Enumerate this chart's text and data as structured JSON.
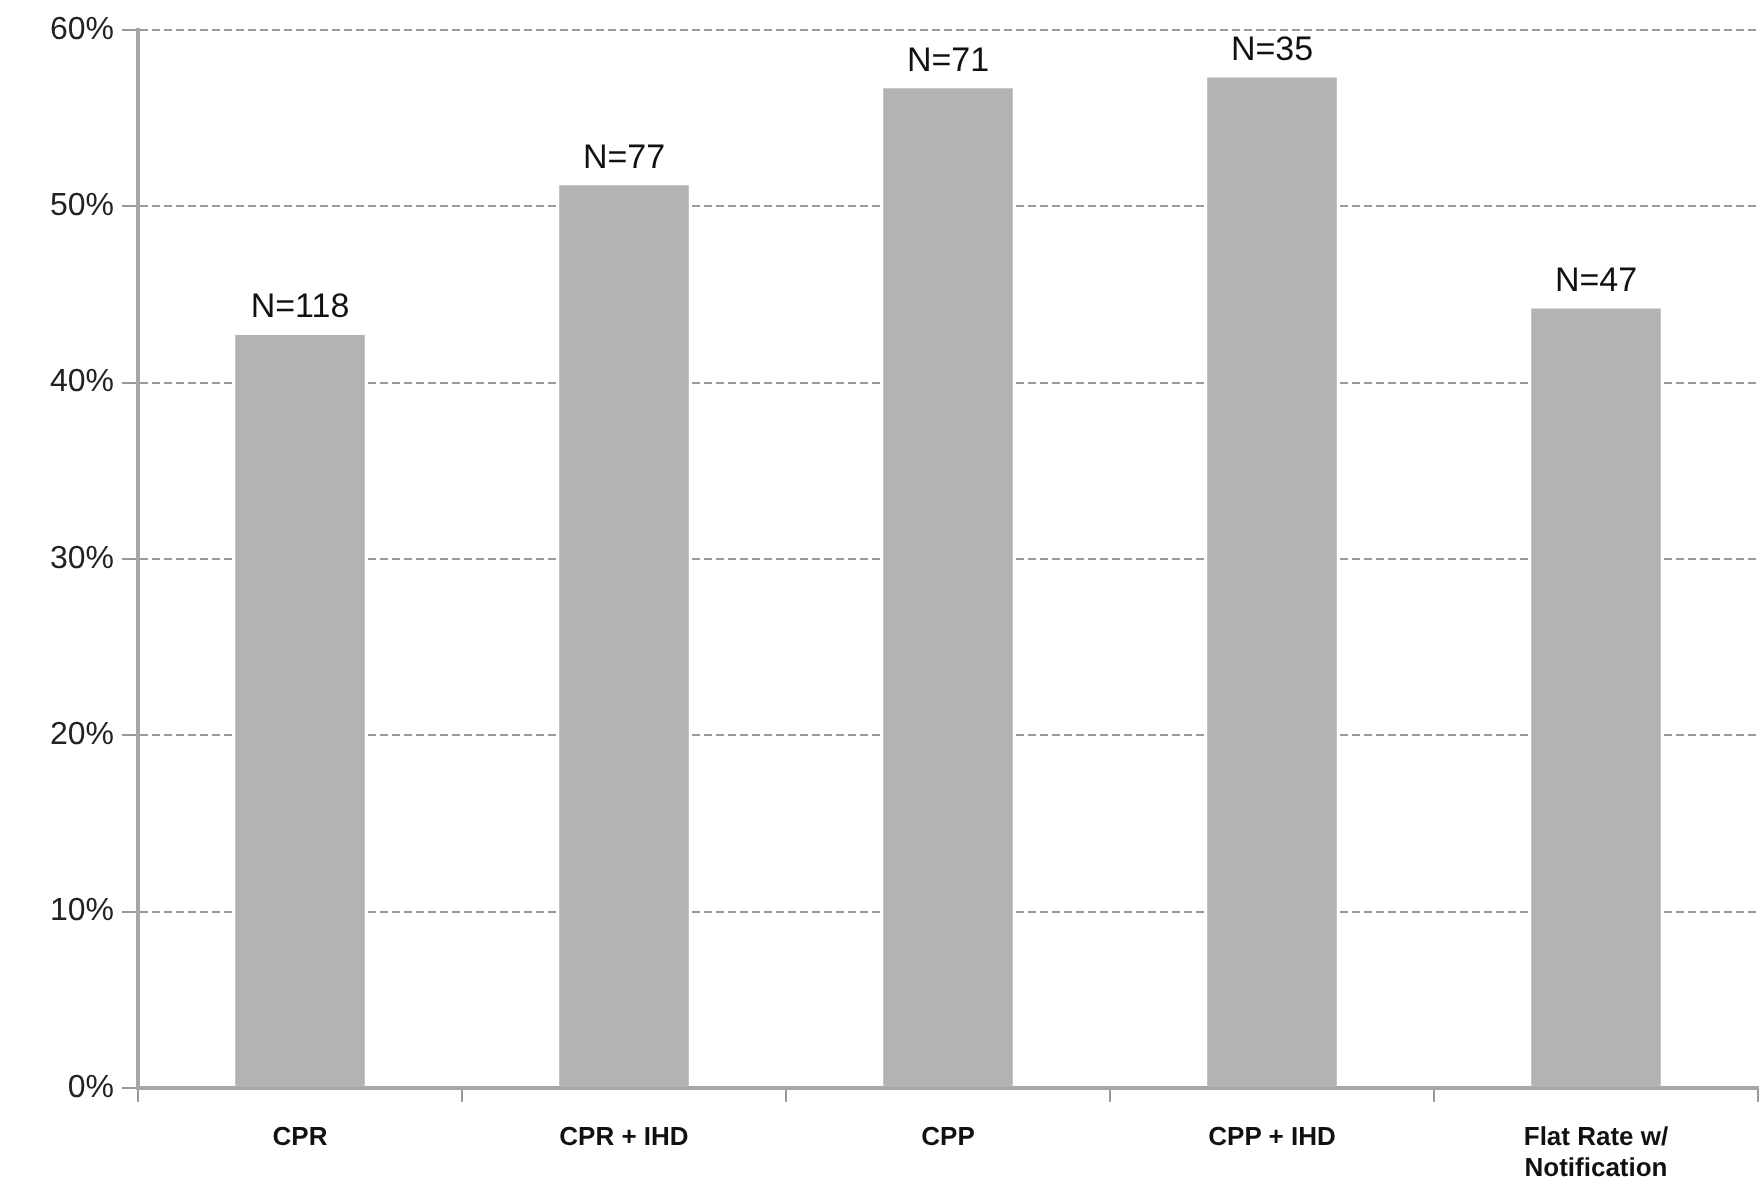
{
  "chart_data": {
    "type": "bar",
    "categories": [
      "CPR",
      "CPR + IHD",
      "CPP",
      "CPP + IHD",
      "Flat Rate w/ Notification"
    ],
    "values": [
      42.7,
      51.2,
      56.7,
      57.3,
      44.2
    ],
    "color": "#b3b3b3",
    "annotations": [
      {
        "text": "N=118",
        "x": "CPR",
        "y": 42.7
      },
      {
        "text": "N=77",
        "x": "CPR + IHD",
        "y": 51.2
      },
      {
        "text": "N=71",
        "x": "CPP",
        "y": 56.7
      },
      {
        "text": "N=35",
        "x": "CPP + IHD",
        "y": 57.3
      },
      {
        "text": "N=47",
        "x": "Flat Rate w/ Notification",
        "y": 44.2
      }
    ],
    "ylim": [
      0,
      60
    ],
    "yticks": [
      {
        "value": 0,
        "label": "0%"
      },
      {
        "value": 10,
        "label": "10%"
      },
      {
        "value": 20,
        "label": "20%"
      },
      {
        "value": 30,
        "label": "30%"
      },
      {
        "value": 40,
        "label": "40%"
      },
      {
        "value": 50,
        "label": "50%"
      },
      {
        "value": 60,
        "label": "60%"
      }
    ],
    "grid": "y"
  }
}
